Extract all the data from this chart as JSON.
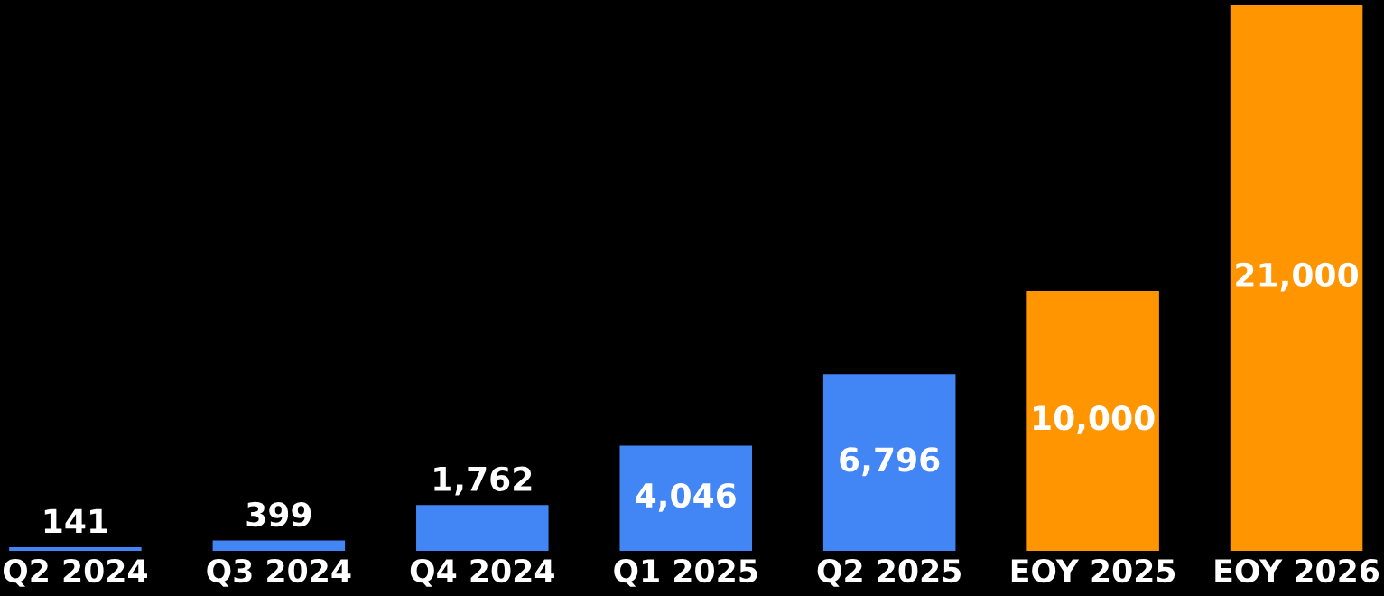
{
  "chart_data": {
    "type": "bar",
    "categories": [
      "Q2 2024",
      "Q3 2024",
      "Q4 2024",
      "Q1 2025",
      "Q2 2025",
      "EOY 2025",
      "EOY 2026"
    ],
    "values": [
      141,
      399,
      1762,
      4046,
      6796,
      10000,
      21000
    ],
    "value_labels": [
      "141",
      "399",
      "1,762",
      "4,046",
      "6,796",
      "10,000",
      "21,000"
    ],
    "colors": [
      "#4285f4",
      "#4285f4",
      "#4285f4",
      "#4285f4",
      "#4285f4",
      "#ff9500",
      "#ff9500"
    ],
    "grid": false,
    "legend": false,
    "tick_labels": "x"
  }
}
